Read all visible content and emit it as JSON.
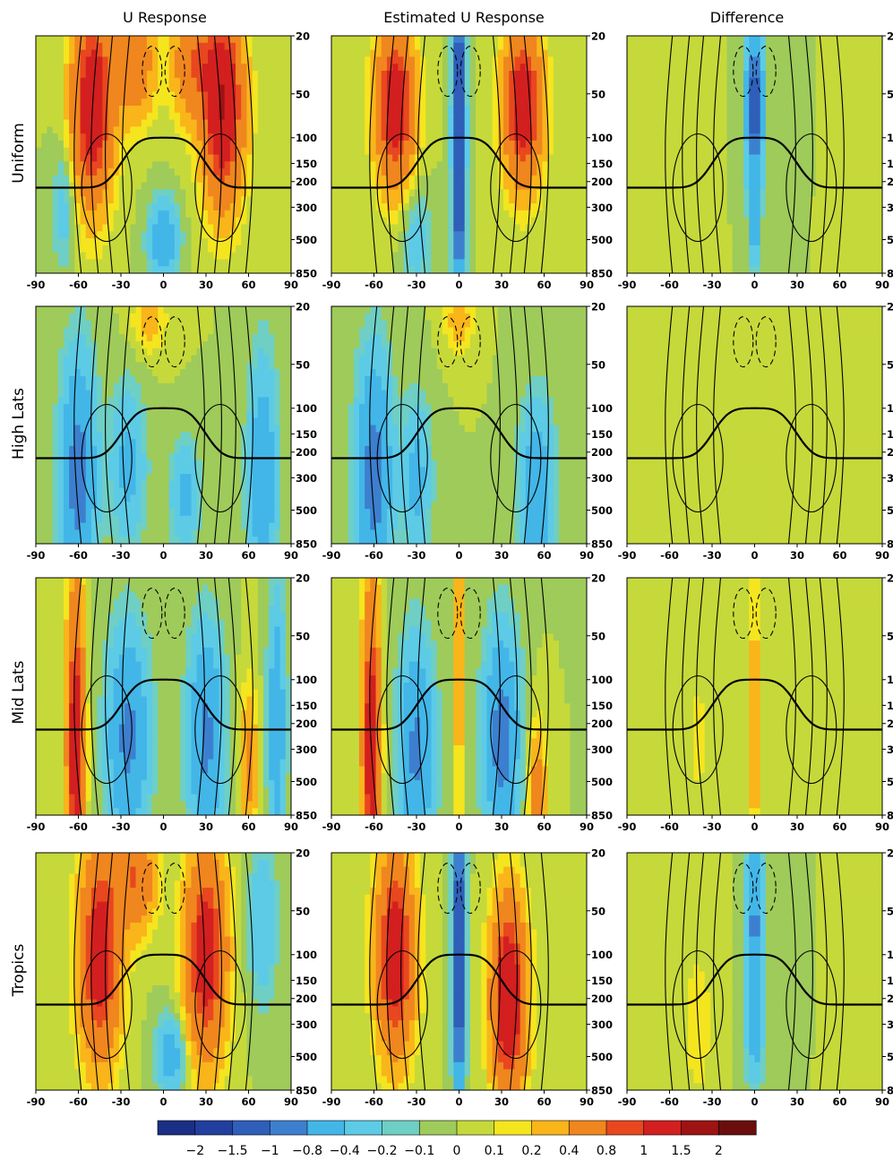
{
  "chart_data": {
    "type": "heatmap",
    "columns": [
      "U Response",
      "Estimated U Response",
      "Difference"
    ],
    "rows": [
      "Uniform",
      "High Lats",
      "Mid Lats",
      "Tropics"
    ],
    "x_ticks": [
      "-90",
      "-60",
      "-30",
      "0",
      "30",
      "60",
      "90"
    ],
    "xlim": [
      -90,
      90
    ],
    "y_ticks": [
      "20",
      "50",
      "100",
      "150",
      "200",
      "300",
      "500",
      "850"
    ],
    "y_tick_values": [
      20,
      50,
      100,
      150,
      200,
      300,
      500,
      850
    ],
    "yscale": "log",
    "ylim": [
      850,
      20
    ],
    "colorbar": {
      "labels": [
        "−2",
        "−1.5",
        "−1",
        "−0.8",
        "−0.4",
        "−0.2",
        "−0.1",
        "0",
        "0.1",
        "0.2",
        "0.4",
        "0.8",
        "1",
        "1.5",
        "2"
      ],
      "values": [
        -2,
        -1.5,
        -1,
        -0.8,
        -0.4,
        -0.2,
        -0.1,
        0,
        0.1,
        0.2,
        0.4,
        0.8,
        1,
        1.5,
        2
      ],
      "colors": [
        "#1c2f86",
        "#223fa0",
        "#2f5fb9",
        "#3d7fcf",
        "#43b6e8",
        "#5dcbe6",
        "#6fcfc4",
        "#9ecb5a",
        "#c6d93a",
        "#f5e51f",
        "#f9b51a",
        "#f0861e",
        "#e8471f",
        "#d31f1f",
        "#9e1313",
        "#6b0d0d"
      ],
      "placement": "bottom"
    },
    "panels": [
      [
        {
          "features": [
            {
              "lat": -50,
              "p": 60,
              "amp": 1.4,
              "w": 14,
              "h": 1.5
            },
            {
              "lat": 42,
              "p": 60,
              "amp": 1.5,
              "w": 14,
              "h": 1.5
            },
            {
              "lat": -20,
              "p": 30,
              "amp": 0.7,
              "w": 14,
              "h": 0.9
            },
            {
              "lat": 20,
              "p": 30,
              "amp": 0.7,
              "w": 14,
              "h": 0.9
            },
            {
              "lat": 0,
              "p": 500,
              "amp": -0.7,
              "w": 10,
              "h": 0.6
            },
            {
              "lat": -70,
              "p": 300,
              "amp": -0.3,
              "w": 8,
              "h": 1.0
            }
          ]
        },
        {
          "features": [
            {
              "lat": -45,
              "p": 60,
              "amp": 1.4,
              "w": 13,
              "h": 1.2
            },
            {
              "lat": 45,
              "p": 60,
              "amp": 1.4,
              "w": 13,
              "h": 1.2
            },
            {
              "lat": 0,
              "p": 100,
              "amp": -1.8,
              "w": 4,
              "h": 2.5
            },
            {
              "lat": -30,
              "p": 500,
              "amp": -0.3,
              "w": 10,
              "h": 0.8
            }
          ]
        },
        {
          "features": [
            {
              "lat": 0,
              "p": 60,
              "amp": -1.2,
              "w": 6,
              "h": 1.4
            },
            {
              "lat": 0,
              "p": 400,
              "amp": -0.6,
              "w": 3,
              "h": 0.7
            },
            {
              "lat": -60,
              "p": 300,
              "amp": 0.1,
              "w": 15,
              "h": 1.5
            }
          ]
        }
      ],
      [
        {
          "features": [
            {
              "lat": -60,
              "p": 300,
              "amp": -1.0,
              "w": 12,
              "h": 1.8
            },
            {
              "lat": -25,
              "p": 250,
              "amp": -0.5,
              "w": 12,
              "h": 1.2
            },
            {
              "lat": 15,
              "p": 400,
              "amp": -0.5,
              "w": 10,
              "h": 0.8
            },
            {
              "lat": 70,
              "p": 300,
              "amp": -0.7,
              "w": 10,
              "h": 1.8
            },
            {
              "lat": -10,
              "p": 25,
              "amp": 0.3,
              "w": 12,
              "h": 0.5
            }
          ]
        },
        {
          "features": [
            {
              "lat": -60,
              "p": 300,
              "amp": -1.0,
              "w": 12,
              "h": 1.8
            },
            {
              "lat": -30,
              "p": 300,
              "amp": -0.5,
              "w": 10,
              "h": 1.2
            },
            {
              "lat": 55,
              "p": 400,
              "amp": -0.7,
              "w": 12,
              "h": 1.4
            },
            {
              "lat": 0,
              "p": 25,
              "amp": 0.3,
              "w": 10,
              "h": 0.5
            }
          ]
        },
        {
          "features": [
            {
              "lat": -5,
              "p": 100,
              "amp": 0.05,
              "w": 30,
              "h": 2.0
            }
          ]
        }
      ],
      [
        {
          "features": [
            {
              "lat": -62,
              "p": 300,
              "amp": 1.3,
              "w": 6,
              "h": 2.5
            },
            {
              "lat": -25,
              "p": 250,
              "amp": -0.9,
              "w": 14,
              "h": 1.6
            },
            {
              "lat": 30,
              "p": 250,
              "amp": -0.9,
              "w": 12,
              "h": 1.6
            },
            {
              "lat": 60,
              "p": 400,
              "amp": 0.5,
              "w": 6,
              "h": 1.2
            },
            {
              "lat": 80,
              "p": 200,
              "amp": -0.7,
              "w": 6,
              "h": 2.0
            }
          ]
        },
        {
          "features": [
            {
              "lat": -62,
              "p": 300,
              "amp": 1.3,
              "w": 6,
              "h": 2.5
            },
            {
              "lat": -30,
              "p": 300,
              "amp": -0.9,
              "w": 12,
              "h": 1.6
            },
            {
              "lat": 30,
              "p": 250,
              "amp": -1.0,
              "w": 12,
              "h": 1.6
            },
            {
              "lat": 55,
              "p": 600,
              "amp": 0.6,
              "w": 6,
              "h": 1.0
            },
            {
              "lat": 0,
              "p": 60,
              "amp": 0.8,
              "w": 2,
              "h": 2.5
            }
          ]
        },
        {
          "features": [
            {
              "lat": 0,
              "p": 200,
              "amp": 0.7,
              "w": 2,
              "h": 2.5
            },
            {
              "lat": -40,
              "p": 250,
              "amp": 0.2,
              "w": 6,
              "h": 0.8
            }
          ]
        }
      ],
      [
        {
          "features": [
            {
              "lat": -45,
              "p": 100,
              "amp": 1.3,
              "w": 14,
              "h": 1.6
            },
            {
              "lat": 30,
              "p": 100,
              "amp": 1.3,
              "w": 14,
              "h": 1.6
            },
            {
              "lat": -20,
              "p": 30,
              "amp": 0.8,
              "w": 14,
              "h": 0.8
            },
            {
              "lat": 5,
              "p": 500,
              "amp": -0.6,
              "w": 10,
              "h": 0.6
            },
            {
              "lat": 70,
              "p": 60,
              "amp": -0.4,
              "w": 10,
              "h": 1.2
            }
          ]
        },
        {
          "features": [
            {
              "lat": -45,
              "p": 100,
              "amp": 1.4,
              "w": 13,
              "h": 1.5
            },
            {
              "lat": 35,
              "p": 200,
              "amp": 1.5,
              "w": 12,
              "h": 1.5
            },
            {
              "lat": 0,
              "p": 100,
              "amp": -1.6,
              "w": 4,
              "h": 2.5
            }
          ]
        },
        {
          "features": [
            {
              "lat": 0,
              "p": 60,
              "amp": -0.9,
              "w": 6,
              "h": 1.4
            },
            {
              "lat": 0,
              "p": 400,
              "amp": -0.4,
              "w": 6,
              "h": 0.8
            },
            {
              "lat": -40,
              "p": 300,
              "amp": 0.15,
              "w": 12,
              "h": 1.5
            }
          ]
        }
      ]
    ]
  }
}
